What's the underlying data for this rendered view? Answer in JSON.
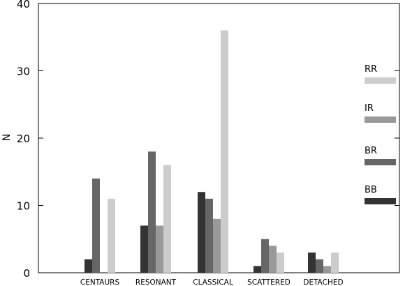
{
  "chart_data": {
    "type": "bar",
    "title": "",
    "xlabel": "",
    "ylabel": "N",
    "ylim": [
      0,
      40
    ],
    "yticks": [
      "0",
      "10",
      "20",
      "30",
      "40"
    ],
    "categories": [
      "CENTAURS",
      "RESONANT",
      "CLASSICAL",
      "SCATTERED",
      "DETACHED"
    ],
    "series": [
      {
        "name": "BB",
        "color": "#333333",
        "values": [
          2,
          7,
          12,
          1,
          3
        ]
      },
      {
        "name": "BR",
        "color": "#666666",
        "values": [
          14,
          18,
          11,
          5,
          2
        ]
      },
      {
        "name": "IR",
        "color": "#999999",
        "values": [
          0,
          7,
          8,
          4,
          1
        ]
      },
      {
        "name": "RR",
        "color": "#cccccc",
        "values": [
          11,
          16,
          36,
          3,
          3
        ]
      }
    ],
    "legend": {
      "placement": "right",
      "order": [
        "RR",
        "IR",
        "BR",
        "BB"
      ]
    },
    "grid": false
  }
}
